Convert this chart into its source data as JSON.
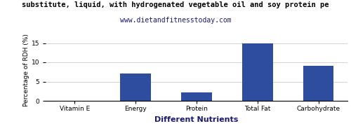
{
  "title_line1": "substitute, liquid, with hydrogenated vegetable oil and soy protein pe",
  "title_line2": "www.dietandfitnesstoday.com",
  "xlabel": "Different Nutrients",
  "ylabel": "Percentage of RDH (%)",
  "categories": [
    "Vitamin E",
    "Energy",
    "Protein",
    "Total Fat",
    "Carbohydrate"
  ],
  "values": [
    0,
    7.1,
    2.1,
    15.0,
    9.1
  ],
  "bar_color": "#2e4d9e",
  "ylim": [
    0,
    16
  ],
  "yticks": [
    0,
    5,
    10,
    15
  ],
  "background_color": "#ffffff",
  "title_fontsize": 7.5,
  "subtitle_fontsize": 7,
  "xlabel_fontsize": 8,
  "ylabel_fontsize": 6.5,
  "tick_fontsize": 6.5,
  "bar_width": 0.5
}
